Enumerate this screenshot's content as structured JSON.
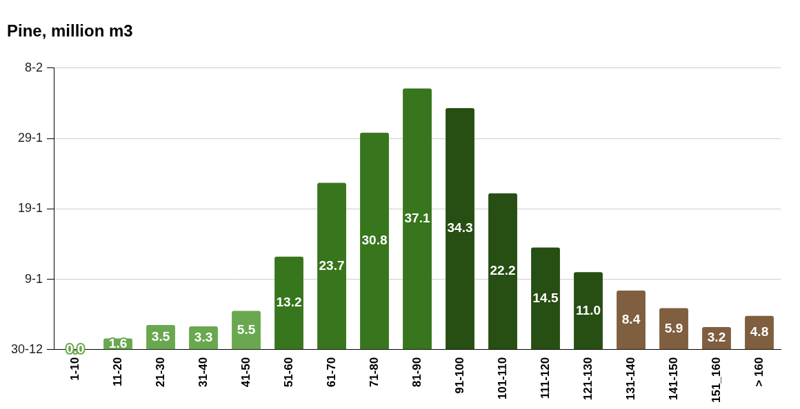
{
  "chart_data": {
    "type": "bar",
    "title": "Pine, million m3",
    "categories": [
      "1-10",
      "11-20",
      "21-30",
      "31-40",
      "41-50",
      "51-60",
      "61-70",
      "71-80",
      "81-90",
      "91-100",
      "101-110",
      "111-120",
      "121-130",
      "131-140",
      "141-150",
      "151_160",
      "> 160"
    ],
    "values": [
      0.0,
      1.6,
      3.5,
      3.3,
      5.5,
      13.2,
      23.7,
      30.8,
      37.1,
      34.3,
      22.2,
      14.5,
      11.0,
      8.4,
      5.9,
      3.2,
      4.8
    ],
    "value_labels": [
      "0.0",
      "1.6",
      "3.5",
      "3.3",
      "5.5",
      "13.2",
      "23.7",
      "30.8",
      "37.1",
      "34.3",
      "22.2",
      "14.5",
      "11.0",
      "8.4",
      "5.9",
      "3.2",
      "4.8"
    ],
    "colors": [
      "#6aa84f",
      "#6aa84f",
      "#6aa84f",
      "#6aa84f",
      "#6aa84f",
      "#38761d",
      "#38761d",
      "#38761d",
      "#38761d",
      "#274e13",
      "#274e13",
      "#274e13",
      "#274e13",
      "#7f5f3f",
      "#7f5f3f",
      "#7f5f3f",
      "#7f5f3f"
    ],
    "ylim": [
      0,
      40
    ],
    "yticks": [
      {
        "value": 0,
        "label": "30-12"
      },
      {
        "value": 10,
        "label": "9-1"
      },
      {
        "value": 20,
        "label": "19-1"
      },
      {
        "value": 30,
        "label": "29-1"
      },
      {
        "value": 40,
        "label": "8-2"
      }
    ],
    "grid": true,
    "data_labels": true
  }
}
